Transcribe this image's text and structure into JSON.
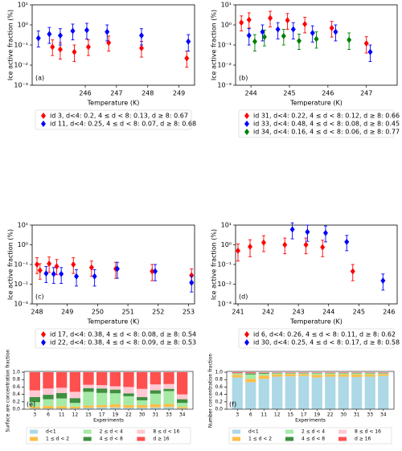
{
  "chart_data": [
    {
      "type": "errorbar",
      "panel_label": "(a)",
      "xlabel": "Temperature (K)",
      "ylabel": "Ice active fraction (%)",
      "log_y": true,
      "xlim": [
        244.3,
        249.5
      ],
      "xticks": [
        246,
        247,
        248,
        249
      ],
      "ylim": [
        0.001,
        10
      ],
      "yticks": [
        {
          "value": 0.001,
          "label": "10⁻³"
        },
        {
          "value": 0.01,
          "label": "10⁻²"
        },
        {
          "value": 0.1,
          "label": "10⁻¹"
        },
        {
          "value": 1,
          "label": "10⁰"
        },
        {
          "value": 10,
          "label": "10¹"
        }
      ],
      "series": [
        {
          "name": "id 3, d<4: 0.2, 4 ≤ d < 8: 0.13, d ≥ 8: 0.67",
          "color": "#ff0000",
          "x": [
            244.95,
            245.2,
            245.65,
            246.1,
            246.75,
            247.8,
            249.25
          ],
          "values": [
            0.08,
            0.06,
            0.045,
            0.08,
            0.13,
            0.07,
            0.022
          ],
          "lower": [
            0.03,
            0.02,
            0.015,
            0.03,
            0.05,
            0.025,
            0.008
          ],
          "upper": [
            0.18,
            0.13,
            0.1,
            0.18,
            0.28,
            0.15,
            0.05
          ]
        },
        {
          "name": "id 11, d<4: 0.25, 4 ≤ d < 8: 0.07, d ≥ 8: 0.68",
          "color": "#0000ff",
          "x": [
            244.5,
            244.85,
            245.2,
            245.6,
            246.05,
            246.7,
            247.8,
            249.3
          ],
          "values": [
            0.22,
            0.35,
            0.3,
            0.5,
            0.55,
            0.45,
            0.3,
            0.15
          ],
          "lower": [
            0.08,
            0.12,
            0.1,
            0.18,
            0.2,
            0.16,
            0.1,
            0.05
          ],
          "upper": [
            0.5,
            0.75,
            0.65,
            1.1,
            1.2,
            1.0,
            0.65,
            0.33
          ]
        }
      ]
    },
    {
      "type": "errorbar",
      "panel_label": "(b)",
      "xlabel": "Temperature (K)",
      "ylabel": "Ice active fraction (%)",
      "log_y": true,
      "xlim": [
        243.6,
        247.8
      ],
      "xticks": [
        244,
        245,
        246,
        247
      ],
      "ylim": [
        0.001,
        10
      ],
      "yticks": [
        {
          "value": 0.001,
          "label": "10⁻³"
        },
        {
          "value": 0.01,
          "label": "10⁻²"
        },
        {
          "value": 0.1,
          "label": "10⁻¹"
        },
        {
          "value": 1,
          "label": "10⁰"
        },
        {
          "value": 10,
          "label": "10¹"
        }
      ],
      "series": [
        {
          "name": "id 31, d<4: 0.22, 4 ≤ d < 8: 0.12, d ≥ 8: 0.66",
          "color": "#ff0000",
          "x": [
            243.75,
            243.95,
            244.5,
            244.95,
            245.4,
            246.1,
            247.0
          ],
          "values": [
            1.3,
            1.8,
            2.2,
            1.7,
            1.1,
            0.7,
            0.12
          ],
          "lower": [
            0.5,
            0.7,
            0.8,
            0.6,
            0.4,
            0.25,
            0.04
          ],
          "upper": [
            2.8,
            4,
            4.8,
            3.7,
            2.4,
            1.5,
            0.26
          ]
        },
        {
          "name": "id 33, d<4: 0.48, 4 ≤ d < 8: 0.08, d ≥ 8: 0.45",
          "color": "#0000ff",
          "x": [
            243.95,
            244.3,
            244.7,
            245.1,
            245.6,
            246.2,
            247.1
          ],
          "values": [
            0.3,
            0.45,
            0.6,
            0.6,
            0.4,
            0.45,
            0.045
          ],
          "lower": [
            0.1,
            0.16,
            0.2,
            0.2,
            0.14,
            0.16,
            0.015
          ],
          "upper": [
            0.65,
            1,
            1.3,
            1.3,
            0.9,
            1,
            0.1
          ]
        },
        {
          "name": "id 34, d<4: 0.16, 4 ≤ d < 8: 0.06, d ≥ 8: 0.77",
          "color": "#008000",
          "x": [
            244.1,
            244.35,
            244.85,
            245.25,
            245.7,
            246.55
          ],
          "values": [
            0.15,
            0.25,
            0.28,
            0.16,
            0.2,
            0.18
          ],
          "lower": [
            0.05,
            0.09,
            0.1,
            0.06,
            0.07,
            0.06
          ],
          "upper": [
            0.33,
            0.55,
            0.6,
            0.35,
            0.45,
            0.4
          ]
        }
      ]
    },
    {
      "type": "errorbar",
      "panel_label": "(c)",
      "xlabel": "Temperature (K)",
      "ylabel": "Ice active fraction (%)",
      "log_y": true,
      "xlim": [
        247.84,
        253.2
      ],
      "xticks": [
        248,
        249,
        250,
        251,
        252,
        253
      ],
      "ylim": [
        0.001,
        10
      ],
      "yticks": [
        {
          "value": 0.001,
          "label": "10⁻³"
        },
        {
          "value": 0.01,
          "label": "10⁻²"
        },
        {
          "value": 0.1,
          "label": "10⁻¹"
        },
        {
          "value": 1,
          "label": "10⁰"
        },
        {
          "value": 10,
          "label": "10¹"
        }
      ],
      "series": [
        {
          "name": "id 17, d<4: 0.38, 4 ≤ d < 8: 0.08, d ≥ 8: 0.54",
          "color": "#ff0000",
          "x": [
            248.0,
            248.1,
            248.4,
            248.65,
            249.2,
            249.8,
            250.6,
            251.8,
            253.1
          ],
          "values": [
            0.1,
            0.05,
            0.11,
            0.08,
            0.1,
            0.07,
            0.06,
            0.045,
            0.028
          ],
          "lower": [
            0.035,
            0.018,
            0.04,
            0.03,
            0.035,
            0.025,
            0.02,
            0.015,
            0.01
          ],
          "upper": [
            0.22,
            0.11,
            0.24,
            0.18,
            0.22,
            0.15,
            0.13,
            0.1,
            0.06
          ]
        },
        {
          "name": "id 22, d<4: 0.38, 4 ≤ d < 8: 0.09, d ≥ 8: 0.53",
          "color": "#0000ff",
          "x": [
            248.3,
            248.55,
            248.8,
            249.3,
            249.9,
            250.65,
            251.9,
            253.1
          ],
          "values": [
            0.035,
            0.033,
            0.033,
            0.025,
            0.025,
            0.06,
            0.045,
            0.012
          ],
          "lower": [
            0.012,
            0.011,
            0.011,
            0.008,
            0.008,
            0.02,
            0.015,
            0.004
          ],
          "upper": [
            0.08,
            0.07,
            0.07,
            0.055,
            0.055,
            0.13,
            0.1,
            0.026
          ]
        }
      ]
    },
    {
      "type": "errorbar",
      "panel_label": "(d)",
      "xlabel": "Temperature (K)",
      "ylabel": "Ice active fraction (%)",
      "log_y": true,
      "xlim": [
        240.92,
        246.27
      ],
      "xticks": [
        241,
        242,
        243,
        244,
        245,
        246
      ],
      "ylim": [
        0.001,
        10
      ],
      "yticks": [
        {
          "value": 0.001,
          "label": "10⁻³"
        },
        {
          "value": 0.01,
          "label": "10⁻²"
        },
        {
          "value": 0.1,
          "label": "10⁻¹"
        },
        {
          "value": 1,
          "label": "10⁰"
        },
        {
          "value": 10,
          "label": "10¹"
        }
      ],
      "series": [
        {
          "name": "id 6, d<4: 0.26, 4 ≤ d < 8: 0.11, d ≥ 8: 0.62",
          "color": "#ff0000",
          "x": [
            241.0,
            241.4,
            241.85,
            242.55,
            243.25,
            243.8,
            244.8
          ],
          "values": [
            0.5,
            0.8,
            1.3,
            1.0,
            1.0,
            0.75,
            0.045
          ],
          "lower": [
            0.15,
            0.25,
            0.45,
            0.35,
            0.35,
            0.25,
            0.015
          ],
          "upper": [
            1.1,
            1.8,
            2.9,
            2.2,
            2.2,
            1.7,
            0.1
          ]
        },
        {
          "name": "id 30, d<4: 0.25, 4 ≤ d < 8: 0.17, d ≥ 8: 0.58",
          "color": "#0000ff",
          "x": [
            242.8,
            243.3,
            243.9,
            244.6,
            245.8
          ],
          "values": [
            6.0,
            4.5,
            4.0,
            1.4,
            0.015
          ],
          "lower": [
            2,
            1.5,
            1.4,
            0.5,
            0.005
          ],
          "upper": [
            13,
            10,
            9,
            3,
            0.033
          ]
        }
      ]
    },
    {
      "type": "stackedbar",
      "panel_label": "(e)",
      "xlabel": "Experiments",
      "ylabel": "Surface are concentration fraction",
      "categories": [
        "3",
        "6",
        "11",
        "12",
        "15",
        "17",
        "19",
        "22",
        "30",
        "31",
        "33",
        "34"
      ],
      "ylim": [
        0,
        1
      ],
      "yticks": [
        {
          "value": 0,
          "label": "0.0"
        },
        0.2,
        0.4,
        0.6,
        0.8,
        {
          "value": 1,
          "label": "1.0"
        }
      ],
      "series": [
        {
          "name": "d<1",
          "color": "#add8e6",
          "values": [
            0.02,
            0.02,
            0.02,
            0.02,
            0.04,
            0.05,
            0.05,
            0.04,
            0.04,
            0.05,
            0.06,
            0.02
          ]
        },
        {
          "name": "1 ≤ d < 2",
          "color": "#ffbe45",
          "values": [
            0.05,
            0.07,
            0.06,
            0.05,
            0.06,
            0.06,
            0.08,
            0.07,
            0.07,
            0.08,
            0.08,
            0.04
          ]
        },
        {
          "name": "2 ≤ d < 4",
          "color": "#a6eaa6",
          "values": [
            0.12,
            0.18,
            0.21,
            0.1,
            0.37,
            0.33,
            0.3,
            0.24,
            0.13,
            0.29,
            0.35,
            0.11
          ]
        },
        {
          "name": "4 ≤ d < 8",
          "color": "#3f8f3f",
          "values": [
            0.14,
            0.12,
            0.15,
            0.13,
            0.1,
            0.12,
            0.1,
            0.08,
            0.09,
            0.09,
            0.06,
            0.1
          ]
        },
        {
          "name": "8 ≤ d < 16",
          "color": "#ffc8d2",
          "values": [
            0.18,
            0.17,
            0.14,
            0.17,
            0.09,
            0.09,
            0.09,
            0.17,
            0.22,
            0.16,
            0.13,
            0.13
          ]
        },
        {
          "name": "d ≥ 16",
          "color": "#ff5050",
          "values": [
            0.49,
            0.44,
            0.42,
            0.53,
            0.34,
            0.35,
            0.38,
            0.4,
            0.45,
            0.33,
            0.32,
            0.6
          ]
        }
      ]
    },
    {
      "type": "stackedbar",
      "panel_label": "(f)",
      "xlabel": "Experiments",
      "ylabel": "Number concentration fraction",
      "categories": [
        "3",
        "6",
        "11",
        "12",
        "15",
        "17",
        "19",
        "22",
        "30",
        "31",
        "33",
        "34"
      ],
      "ylim": [
        0,
        1
      ],
      "yticks": [
        {
          "value": 0,
          "label": "0.0"
        },
        0.2,
        0.4,
        0.6,
        0.8,
        {
          "value": 1,
          "label": "1.0"
        }
      ],
      "series": [
        {
          "name": "d<1",
          "color": "#add8e6",
          "values": [
            0.86,
            0.73,
            0.82,
            0.88,
            0.89,
            0.9,
            0.86,
            0.88,
            0.88,
            0.87,
            0.88,
            0.9
          ]
        },
        {
          "name": "1 ≤ d < 2",
          "color": "#ffbe45",
          "values": [
            0.07,
            0.09,
            0.09,
            0.06,
            0.06,
            0.05,
            0.07,
            0.06,
            0.06,
            0.07,
            0.06,
            0.05
          ]
        },
        {
          "name": "2 ≤ d < 4",
          "color": "#a6eaa6",
          "values": [
            0.03,
            0.12,
            0.05,
            0.03,
            0.02,
            0.02,
            0.04,
            0.03,
            0.03,
            0.03,
            0.03,
            0.02
          ]
        },
        {
          "name": "4 ≤ d < 8",
          "color": "#3f8f3f",
          "values": [
            0.01,
            0.03,
            0.02,
            0.01,
            0.01,
            0.01,
            0.01,
            0.01,
            0.01,
            0.01,
            0.01,
            0.01
          ]
        },
        {
          "name": "8 ≤ d < 16",
          "color": "#ffc8d2",
          "values": [
            0.01,
            0.01,
            0.01,
            0.01,
            0.01,
            0.01,
            0.01,
            0.01,
            0.01,
            0.01,
            0.01,
            0.01
          ]
        },
        {
          "name": "d ≥ 16",
          "color": "#ff5050",
          "values": [
            0.02,
            0.02,
            0.01,
            0.01,
            0.01,
            0.01,
            0.01,
            0.01,
            0.01,
            0.01,
            0.01,
            0.01
          ]
        }
      ]
    }
  ]
}
